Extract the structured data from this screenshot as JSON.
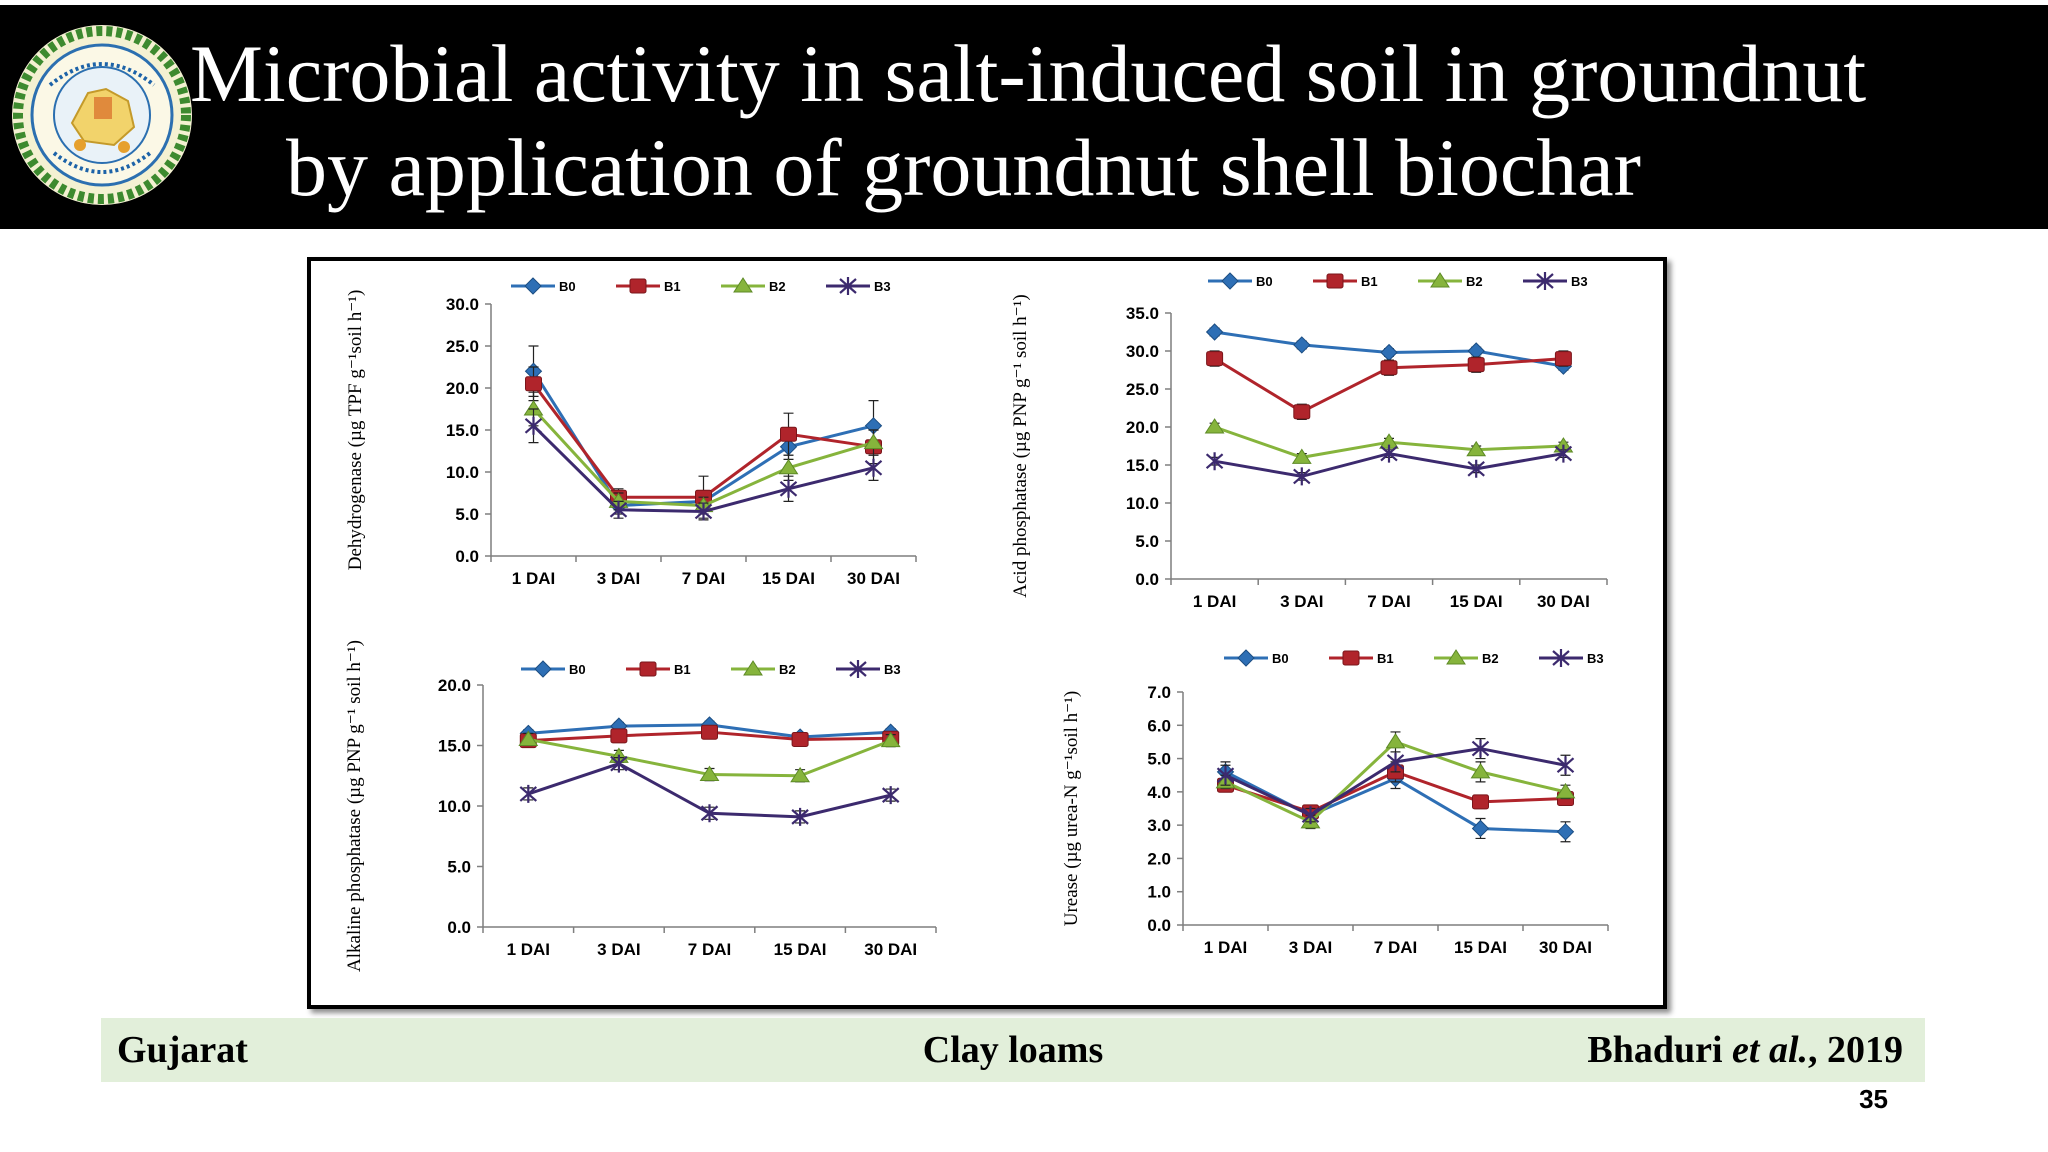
{
  "header": {
    "title_line1": "Microbial activity in salt-induced soil in groundnut",
    "title_line2": "by application of groundnut shell biochar"
  },
  "footer": {
    "location": "Gujarat",
    "soil": "Clay loams",
    "citation_author": "Bhaduri ",
    "citation_etal": "et al.",
    "citation_year": ", 2019"
  },
  "page_number": "35",
  "colors": {
    "header_bg": "#000000",
    "footer_bg": "#e2efda",
    "B0": "#2e6fb5",
    "B1": "#b0242b",
    "B2": "#86b43c",
    "B3": "#3c2a6e"
  },
  "icons": {
    "logo": "state-emblem-logo"
  },
  "chart_data": [
    {
      "type": "line",
      "ylabel": "Dehydrogenase (µg TPF g⁻¹soil h⁻¹)",
      "categories": [
        "1 DAI",
        "3 DAI",
        "7 DAI",
        "15 DAI",
        "30 DAI"
      ],
      "yticks": [
        "0.0",
        "5.0",
        "10.0",
        "15.0",
        "20.0",
        "25.0",
        "30.0"
      ],
      "ylim": [
        0,
        30
      ],
      "legend": "top",
      "series": [
        {
          "name": "B0",
          "values": [
            22.0,
            6.0,
            6.5,
            13.0,
            15.5
          ],
          "errors": [
            3.0,
            1.0,
            1.0,
            1.5,
            3.0
          ]
        },
        {
          "name": "B1",
          "values": [
            20.5,
            7.0,
            7.0,
            14.5,
            13.0
          ],
          "errors": [
            2.0,
            1.0,
            2.5,
            2.5,
            2.0
          ]
        },
        {
          "name": "B2",
          "values": [
            17.5,
            6.5,
            6.0,
            10.5,
            13.5
          ],
          "errors": [
            2.0,
            1.0,
            1.0,
            1.5,
            1.5
          ]
        },
        {
          "name": "B3",
          "values": [
            15.5,
            5.5,
            5.3,
            8.0,
            10.5
          ],
          "errors": [
            2.0,
            1.0,
            1.0,
            1.5,
            1.5
          ]
        }
      ]
    },
    {
      "type": "line",
      "ylabel": "Acid phosphatase (µg PNP g⁻¹ soil h⁻¹)",
      "categories": [
        "1 DAI",
        "3 DAI",
        "7 DAI",
        "15 DAI",
        "30 DAI"
      ],
      "yticks": [
        "0.0",
        "5.0",
        "10.0",
        "15.0",
        "20.0",
        "25.0",
        "30.0",
        "35.0"
      ],
      "ylim": [
        0,
        35
      ],
      "legend": "top",
      "series": [
        {
          "name": "B0",
          "values": [
            32.5,
            30.8,
            29.8,
            30.0,
            28.0
          ],
          "errors": [
            0.5,
            0.5,
            0.5,
            0.5,
            0.5
          ]
        },
        {
          "name": "B1",
          "values": [
            29.0,
            22.0,
            27.8,
            28.2,
            29.0
          ],
          "errors": [
            1.0,
            1.0,
            1.0,
            1.0,
            1.0
          ]
        },
        {
          "name": "B2",
          "values": [
            20.0,
            16.0,
            18.0,
            17.0,
            17.5
          ],
          "errors": [
            0.5,
            0.5,
            0.5,
            0.5,
            0.5
          ]
        },
        {
          "name": "B3",
          "values": [
            15.5,
            13.5,
            16.5,
            14.5,
            16.5
          ],
          "errors": [
            0.5,
            0.5,
            0.5,
            0.5,
            0.5
          ]
        }
      ]
    },
    {
      "type": "line",
      "ylabel": "Alkaline phosphatase (µg PNP g⁻¹ soil h⁻¹)",
      "categories": [
        "1 DAI",
        "3 DAI",
        "7 DAI",
        "15 DAI",
        "30 DAI"
      ],
      "yticks": [
        "0.0",
        "5.0",
        "10.0",
        "15.0",
        "20.0"
      ],
      "ylim": [
        0,
        20
      ],
      "legend": "top",
      "series": [
        {
          "name": "B0",
          "values": [
            16.0,
            16.6,
            16.7,
            15.7,
            16.1
          ],
          "errors": [
            0.3,
            0.3,
            0.3,
            0.3,
            0.3
          ]
        },
        {
          "name": "B1",
          "values": [
            15.4,
            15.8,
            16.1,
            15.5,
            15.6
          ],
          "errors": [
            0.4,
            0.4,
            0.4,
            0.4,
            0.4
          ]
        },
        {
          "name": "B2",
          "values": [
            15.5,
            14.1,
            12.6,
            12.5,
            15.4
          ],
          "errors": [
            0.5,
            0.5,
            0.5,
            0.5,
            0.5
          ]
        },
        {
          "name": "B3",
          "values": [
            11.0,
            13.5,
            9.4,
            9.1,
            10.9
          ],
          "errors": [
            0.5,
            0.5,
            0.5,
            0.5,
            0.5
          ]
        }
      ]
    },
    {
      "type": "line",
      "ylabel": "Urease (µg urea-N g⁻¹soil h⁻¹)",
      "categories": [
        "1 DAI",
        "3 DAI",
        "7 DAI",
        "15 DAI",
        "30 DAI"
      ],
      "yticks": [
        "0.0",
        "1.0",
        "2.0",
        "3.0",
        "4.0",
        "5.0",
        "6.0",
        "7.0"
      ],
      "ylim": [
        0,
        7
      ],
      "legend": "top",
      "series": [
        {
          "name": "B0",
          "values": [
            4.6,
            3.3,
            4.4,
            2.9,
            2.8
          ],
          "errors": [
            0.3,
            0.2,
            0.3,
            0.3,
            0.3
          ]
        },
        {
          "name": "B1",
          "values": [
            4.2,
            3.4,
            4.6,
            3.7,
            3.8
          ],
          "errors": [
            0.2,
            0.2,
            0.3,
            0.2,
            0.2
          ]
        },
        {
          "name": "B2",
          "values": [
            4.3,
            3.1,
            5.5,
            4.6,
            4.0
          ],
          "errors": [
            0.2,
            0.2,
            0.3,
            0.3,
            0.2
          ]
        },
        {
          "name": "B3",
          "values": [
            4.5,
            3.3,
            4.9,
            5.3,
            4.8
          ],
          "errors": [
            0.3,
            0.2,
            0.3,
            0.3,
            0.3
          ]
        }
      ]
    }
  ]
}
